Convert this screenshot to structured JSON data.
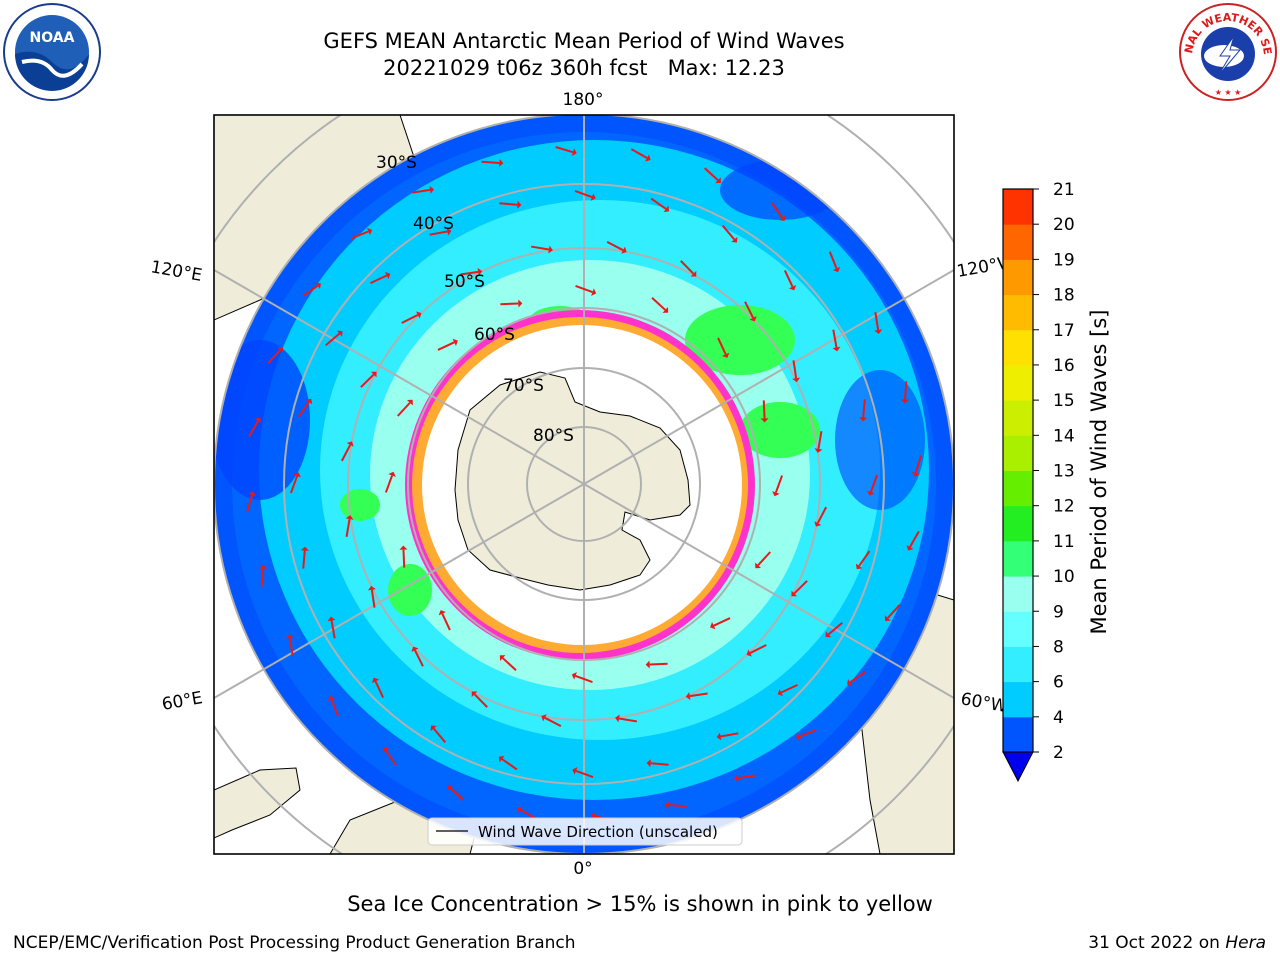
{
  "header": {
    "title_line1": "GEFS MEAN Antarctic Mean Period of Wind Waves",
    "title_line2": "20221029 t06z 360h fcst   Max: 12.23"
  },
  "logos": {
    "left": {
      "text": "NOAA",
      "icon": "noaa-logo-icon"
    },
    "right": {
      "text": "NATIONAL WEATHER SERVICE",
      "icon": "nws-logo-icon"
    }
  },
  "map": {
    "projection": "south-polar-stereographic",
    "lon_labels": {
      "top": "180°",
      "bottom": "0°",
      "left_upper": "120°E",
      "left_lower": "60°E",
      "right_upper": "120°W",
      "right_lower": "60°W"
    },
    "lat_labels": [
      "30°S",
      "40°S",
      "50°S",
      "60°S",
      "70°S",
      "80°S"
    ],
    "colors": {
      "land": "#efedda",
      "ocean_low": "#0000ff",
      "ocean_mid": "#00ccff",
      "ocean_high": "#99ffee",
      "green": "#33ff55",
      "ice_edge": "#ff33cc",
      "ice_inner": "#ffaa33",
      "arrow": "#e61a1a"
    }
  },
  "colorbar": {
    "label": "Mean Period of Wind Waves [s]",
    "ticks": [
      "2",
      "4",
      "6",
      "8",
      "9",
      "10",
      "11",
      "12",
      "13",
      "14",
      "15",
      "16",
      "17",
      "18",
      "19",
      "20",
      "21"
    ],
    "colors": [
      "#0055ff",
      "#00ccff",
      "#33eeff",
      "#66ffff",
      "#99ffee",
      "#33ff77",
      "#22ee22",
      "#66ee00",
      "#aaee00",
      "#ccee00",
      "#eeee00",
      "#ffe000",
      "#ffbb00",
      "#ff9900",
      "#ff6600",
      "#ff3300"
    ],
    "extend_color": "#0000ee"
  },
  "legend": {
    "label": "Wind Wave Direction (unscaled)"
  },
  "caption": "Sea Ice Concentration > 15% is shown in pink to yellow",
  "footer": {
    "left": "NCEP/EMC/Verification Post Processing Product Generation Branch",
    "date": "31 Oct 2022 on",
    "host": "Hera"
  }
}
